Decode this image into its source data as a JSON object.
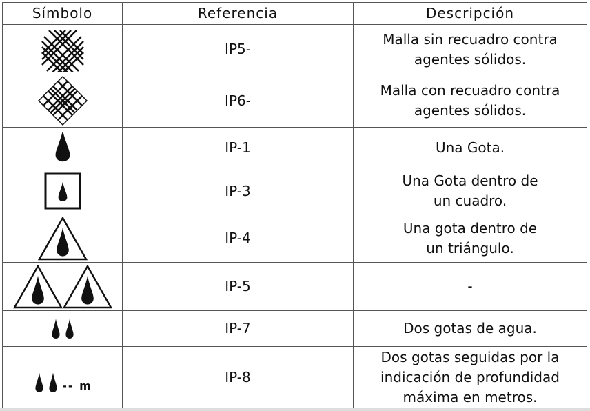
{
  "headers": {
    "symbol": "Símbolo",
    "reference": "Referencia",
    "description": "Descripción"
  },
  "rows": [
    {
      "icon": "mesh-without-border-icon",
      "reference": "IP5-",
      "description": "Malla sin recuadro contra agentes sólidos."
    },
    {
      "icon": "mesh-with-border-icon",
      "reference": "IP6-",
      "description": "Malla con recuadro contra agentes sólidos."
    },
    {
      "icon": "drop-icon",
      "reference": "IP-1",
      "description": "Una Gota."
    },
    {
      "icon": "drop-in-square-icon",
      "reference": "IP-3",
      "description": "Una Gota dentro de un cuadro."
    },
    {
      "icon": "drop-in-triangle-icon",
      "reference": "IP-4",
      "description": "Una gota dentro de un triángulo."
    },
    {
      "icon": "two-drops-in-triangles-icon",
      "reference": "IP-5",
      "description": "-"
    },
    {
      "icon": "two-drops-icon",
      "reference": "IP-7",
      "description": "Dos gotas de agua."
    },
    {
      "icon": "two-drops-depth-icon",
      "reference": "IP-8",
      "description": "Dos gotas seguidas por la indicación de profundidad máxima en metros.",
      "symbol_text": "-- m"
    }
  ]
}
